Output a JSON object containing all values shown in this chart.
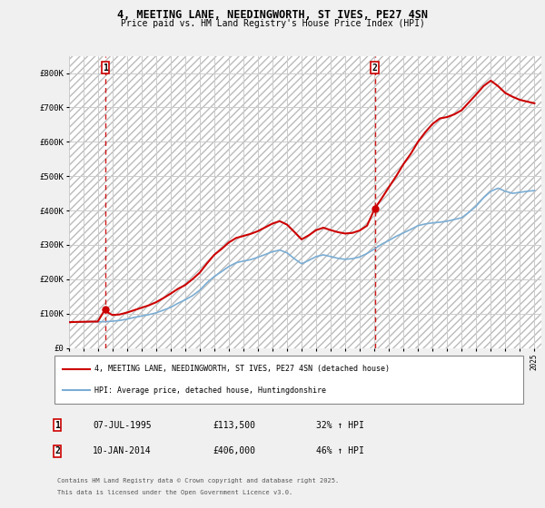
{
  "title": "4, MEETING LANE, NEEDINGWORTH, ST IVES, PE27 4SN",
  "subtitle": "Price paid vs. HM Land Registry's House Price Index (HPI)",
  "ylim": [
    0,
    850000
  ],
  "yticks": [
    0,
    100000,
    200000,
    300000,
    400000,
    500000,
    600000,
    700000,
    800000
  ],
  "ytick_labels": [
    "£0",
    "£100K",
    "£200K",
    "£300K",
    "£400K",
    "£500K",
    "£600K",
    "£700K",
    "£800K"
  ],
  "background_color": "#f0f0f0",
  "plot_bg_color": "#ffffff",
  "grid_color": "#cccccc",
  "red_line_color": "#cc0000",
  "blue_line_color": "#7aadd4",
  "marker_color": "#cc0000",
  "vline_color": "#cc0000",
  "annotation_box_color": "#cc0000",
  "sale1_date_num": 1995.52,
  "sale1_price": 113500,
  "sale1_label": "1",
  "sale1_date_str": "07-JUL-1995",
  "sale1_price_str": "£113,500",
  "sale1_hpi_str": "32% ↑ HPI",
  "sale2_date_num": 2014.03,
  "sale2_price": 406000,
  "sale2_label": "2",
  "sale2_date_str": "10-JAN-2014",
  "sale2_price_str": "£406,000",
  "sale2_hpi_str": "46% ↑ HPI",
  "legend_label1": "4, MEETING LANE, NEEDINGWORTH, ST IVES, PE27 4SN (detached house)",
  "legend_label2": "HPI: Average price, detached house, Huntingdonshire",
  "footer1": "Contains HM Land Registry data © Crown copyright and database right 2025.",
  "footer2": "This data is licensed under the Open Government Licence v3.0.",
  "xmin": 1993.0,
  "xmax": 2025.5,
  "hpi_data": [
    [
      1993.0,
      75000
    ],
    [
      1993.5,
      75500
    ],
    [
      1994.0,
      76000
    ],
    [
      1994.5,
      76500
    ],
    [
      1995.0,
      76000
    ],
    [
      1995.5,
      76500
    ],
    [
      1996.0,
      78000
    ],
    [
      1996.5,
      80000
    ],
    [
      1997.0,
      84000
    ],
    [
      1997.5,
      89000
    ],
    [
      1998.0,
      93000
    ],
    [
      1998.5,
      97000
    ],
    [
      1999.0,
      102000
    ],
    [
      1999.5,
      110000
    ],
    [
      2000.0,
      118000
    ],
    [
      2000.5,
      130000
    ],
    [
      2001.0,
      140000
    ],
    [
      2001.5,
      152000
    ],
    [
      2002.0,
      168000
    ],
    [
      2002.5,
      190000
    ],
    [
      2003.0,
      208000
    ],
    [
      2003.5,
      222000
    ],
    [
      2004.0,
      237000
    ],
    [
      2004.5,
      248000
    ],
    [
      2005.0,
      253000
    ],
    [
      2005.5,
      257000
    ],
    [
      2006.0,
      264000
    ],
    [
      2006.5,
      272000
    ],
    [
      2007.0,
      280000
    ],
    [
      2007.5,
      285000
    ],
    [
      2008.0,
      277000
    ],
    [
      2008.5,
      260000
    ],
    [
      2009.0,
      245000
    ],
    [
      2009.5,
      255000
    ],
    [
      2010.0,
      266000
    ],
    [
      2010.5,
      271000
    ],
    [
      2011.0,
      266000
    ],
    [
      2011.5,
      261000
    ],
    [
      2012.0,
      258000
    ],
    [
      2012.5,
      260000
    ],
    [
      2013.0,
      265000
    ],
    [
      2013.5,
      275000
    ],
    [
      2014.0,
      288000
    ],
    [
      2014.5,
      302000
    ],
    [
      2015.0,
      313000
    ],
    [
      2015.5,
      325000
    ],
    [
      2016.0,
      335000
    ],
    [
      2016.5,
      345000
    ],
    [
      2017.0,
      356000
    ],
    [
      2017.5,
      361000
    ],
    [
      2018.0,
      364000
    ],
    [
      2018.5,
      366000
    ],
    [
      2019.0,
      369000
    ],
    [
      2019.5,
      374000
    ],
    [
      2020.0,
      379000
    ],
    [
      2020.5,
      395000
    ],
    [
      2021.0,
      413000
    ],
    [
      2021.5,
      437000
    ],
    [
      2022.0,
      456000
    ],
    [
      2022.5,
      465000
    ],
    [
      2023.0,
      456000
    ],
    [
      2023.5,
      450000
    ],
    [
      2024.0,
      453000
    ],
    [
      2024.5,
      456000
    ],
    [
      2025.0,
      458000
    ]
  ],
  "price_data": [
    [
      1993.0,
      75000
    ],
    [
      1993.5,
      75800
    ],
    [
      1994.0,
      76200
    ],
    [
      1994.5,
      76700
    ],
    [
      1995.0,
      77000
    ],
    [
      1995.52,
      113500
    ],
    [
      1995.7,
      103000
    ],
    [
      1996.0,
      96000
    ],
    [
      1996.5,
      97500
    ],
    [
      1997.0,
      103000
    ],
    [
      1997.5,
      110000
    ],
    [
      1998.0,
      117000
    ],
    [
      1998.5,
      124000
    ],
    [
      1999.0,
      133000
    ],
    [
      1999.5,
      145000
    ],
    [
      2000.0,
      158000
    ],
    [
      2000.5,
      172000
    ],
    [
      2001.0,
      183000
    ],
    [
      2001.5,
      200000
    ],
    [
      2002.0,
      219000
    ],
    [
      2002.5,
      246000
    ],
    [
      2003.0,
      271000
    ],
    [
      2003.5,
      288000
    ],
    [
      2004.0,
      307000
    ],
    [
      2004.5,
      320000
    ],
    [
      2005.0,
      326000
    ],
    [
      2005.5,
      332000
    ],
    [
      2006.0,
      340000
    ],
    [
      2006.5,
      351000
    ],
    [
      2007.0,
      362000
    ],
    [
      2007.5,
      369000
    ],
    [
      2008.0,
      359000
    ],
    [
      2008.5,
      338000
    ],
    [
      2009.0,
      316000
    ],
    [
      2009.5,
      328000
    ],
    [
      2010.0,
      343000
    ],
    [
      2010.5,
      350000
    ],
    [
      2011.0,
      343000
    ],
    [
      2011.5,
      337000
    ],
    [
      2012.0,
      333000
    ],
    [
      2012.5,
      335000
    ],
    [
      2013.0,
      342000
    ],
    [
      2013.5,
      356000
    ],
    [
      2014.03,
      406000
    ],
    [
      2014.5,
      435000
    ],
    [
      2015.0,
      468000
    ],
    [
      2015.5,
      500000
    ],
    [
      2016.0,
      535000
    ],
    [
      2016.5,
      565000
    ],
    [
      2017.0,
      600000
    ],
    [
      2017.5,
      628000
    ],
    [
      2018.0,
      652000
    ],
    [
      2018.5,
      668000
    ],
    [
      2019.0,
      672000
    ],
    [
      2019.5,
      680000
    ],
    [
      2020.0,
      692000
    ],
    [
      2020.5,
      715000
    ],
    [
      2021.0,
      738000
    ],
    [
      2021.5,
      762000
    ],
    [
      2022.0,
      778000
    ],
    [
      2022.5,
      762000
    ],
    [
      2023.0,
      742000
    ],
    [
      2023.5,
      731000
    ],
    [
      2024.0,
      722000
    ],
    [
      2024.5,
      717000
    ],
    [
      2025.0,
      712000
    ]
  ]
}
